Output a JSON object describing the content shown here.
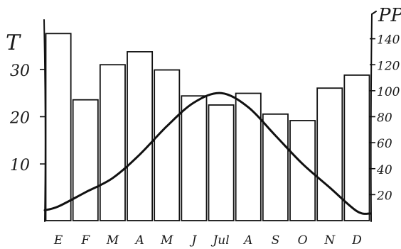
{
  "chart_data": {
    "type": "bar+line",
    "left_axis_label": "T",
    "right_axis_label": "PP",
    "categories": [
      "E",
      "F",
      "M",
      "A",
      "M",
      "J",
      "Jul",
      "A",
      "S",
      "O",
      "N",
      "D"
    ],
    "left_ticks": [
      {
        "label": "10",
        "value": 10
      },
      {
        "label": "20",
        "value": 20
      },
      {
        "label": "30",
        "value": 30
      }
    ],
    "right_ticks": [
      {
        "label": "20",
        "value": 20
      },
      {
        "label": "40",
        "value": 40
      },
      {
        "label": "60",
        "value": 60
      },
      {
        "label": "80",
        "value": 80
      },
      {
        "label": "100",
        "value": 100
      },
      {
        "label": "120",
        "value": 120
      },
      {
        "label": "140",
        "value": 140
      }
    ],
    "series": [
      {
        "type": "bar",
        "axis": "right",
        "values": [
          144,
          93,
          120,
          130,
          116,
          96,
          89,
          98,
          82,
          77,
          102,
          112
        ]
      },
      {
        "type": "line",
        "axis": "left",
        "values": [
          1,
          4,
          7,
          12,
          18,
          23,
          25,
          22,
          16,
          10,
          5,
          0
        ]
      }
    ],
    "left_ylim": [
      -2,
      42
    ],
    "right_ylim": [
      0,
      160
    ],
    "grid": false,
    "legend": "none"
  }
}
